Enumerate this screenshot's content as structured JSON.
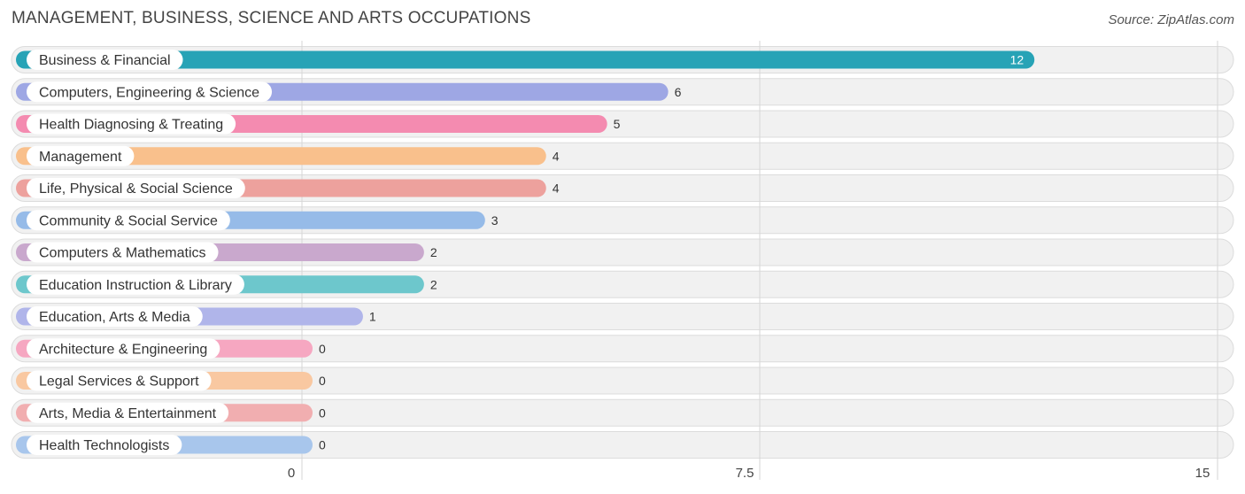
{
  "chart_data": {
    "type": "bar",
    "orientation": "horizontal",
    "title": "MANAGEMENT, BUSINESS, SCIENCE AND ARTS OCCUPATIONS",
    "source": "Source: ZipAtlas.com",
    "xlim": [
      0,
      15
    ],
    "ticks": [
      {
        "value": 0,
        "label": "0"
      },
      {
        "value": 7.5,
        "label": "7.5"
      },
      {
        "value": 15,
        "label": "15"
      }
    ],
    "categories": [
      "Business & Financial",
      "Computers, Engineering & Science",
      "Health Diagnosing & Treating",
      "Management",
      "Life, Physical & Social Science",
      "Community & Social Service",
      "Computers & Mathematics",
      "Education Instruction & Library",
      "Education, Arts & Media",
      "Architecture & Engineering",
      "Legal Services & Support",
      "Arts, Media & Entertainment",
      "Health Technologists"
    ],
    "values": [
      12,
      6,
      5,
      4,
      4,
      3,
      2,
      2,
      1,
      0,
      0,
      0,
      0
    ],
    "value_labels": [
      "12",
      "6",
      "5",
      "4",
      "4",
      "3",
      "2",
      "2",
      "1",
      "0",
      "0",
      "0",
      "0"
    ],
    "colors": [
      "#27a3b6",
      "#9ea7e4",
      "#f48bb0",
      "#f9c08c",
      "#eda19d",
      "#96bbe8",
      "#c9a8cd",
      "#6dc7cc",
      "#b0b5ea",
      "#f6a7c1",
      "#f9c8a1",
      "#f1aeb0",
      "#a8c6ec"
    ]
  }
}
